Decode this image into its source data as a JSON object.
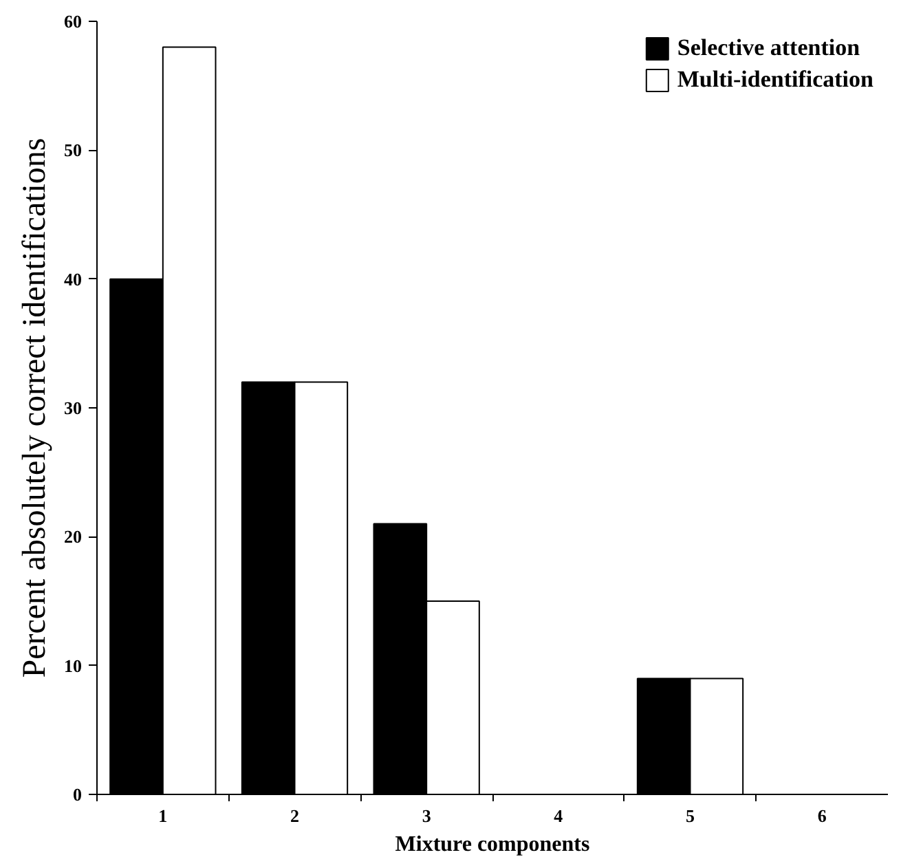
{
  "chart_data": {
    "type": "bar",
    "xlabel": "Mixture components",
    "ylabel": "Percent absolutely correct identifications",
    "categories": [
      "1",
      "2",
      "3",
      "4",
      "5",
      "6"
    ],
    "series": [
      {
        "name": "Selective attention",
        "color": "#000000",
        "values": [
          40,
          32,
          21,
          0,
          9,
          0
        ]
      },
      {
        "name": "Multi-identification",
        "color": "#ffffff",
        "values": [
          58,
          32,
          15,
          0,
          9,
          0
        ]
      }
    ],
    "ylim": [
      0,
      60
    ],
    "yticks": [
      0,
      10,
      20,
      30,
      40,
      50,
      60
    ],
    "grid": false,
    "legend": "top right"
  }
}
